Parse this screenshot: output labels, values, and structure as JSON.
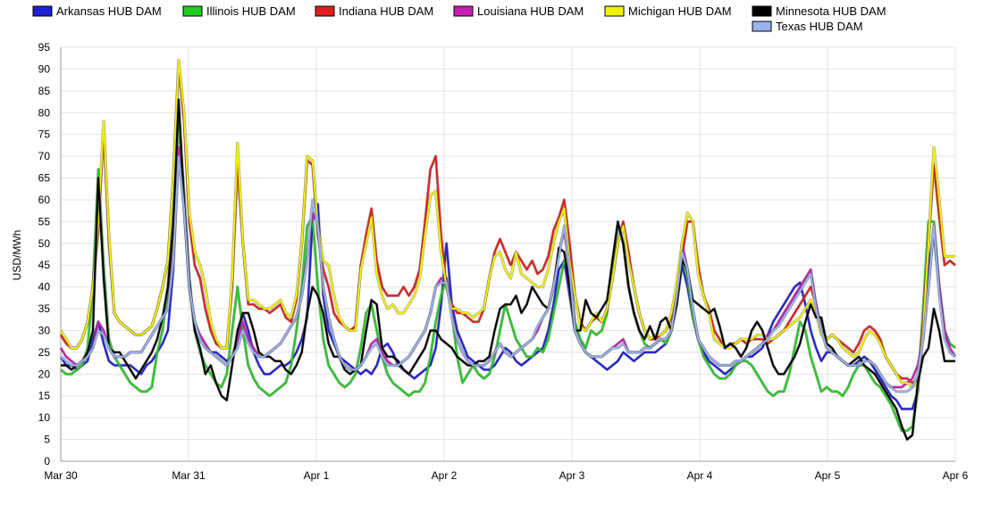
{
  "chart_data": {
    "type": "line",
    "title": "",
    "xlabel": "",
    "ylabel": "USD/MWh",
    "ylim": [
      0,
      95
    ],
    "yticks": [
      0,
      5,
      10,
      15,
      20,
      25,
      30,
      35,
      40,
      45,
      50,
      55,
      60,
      65,
      70,
      75,
      80,
      85,
      90,
      95
    ],
    "x_range": [
      0,
      168
    ],
    "x_unit": "hours from Mar 30 00:00",
    "x_tick_labels": [
      "Mar 30",
      "Mar 31",
      "Apr 1",
      "Apr 2",
      "Apr 3",
      "Apr 4",
      "Apr 5",
      "Apr 6"
    ],
    "grid": true,
    "legend_position": "top",
    "series": [
      {
        "name": "Arkansas HUB DAM",
        "color": "#1f1fd6",
        "values": [
          24,
          22,
          22,
          21,
          22,
          23,
          28,
          32,
          27,
          23,
          22,
          22,
          22,
          22,
          21,
          20,
          22,
          23,
          25,
          27,
          30,
          44,
          72,
          58,
          40,
          32,
          28,
          26,
          25,
          25,
          24,
          23,
          24,
          28,
          34,
          30,
          25,
          22,
          20,
          20,
          21,
          22,
          22,
          23,
          25,
          28,
          33,
          55,
          59,
          38,
          30,
          27,
          24,
          23,
          22,
          21,
          20,
          21,
          20,
          22,
          26,
          27,
          25,
          22,
          21,
          20,
          19,
          20,
          21,
          22,
          26,
          36,
          50,
          36,
          30,
          27,
          24,
          23,
          22,
          21,
          21,
          22,
          24,
          26,
          25,
          23,
          22,
          23,
          24,
          25,
          26,
          30,
          36,
          44,
          46,
          38,
          30,
          27,
          25,
          24,
          23,
          22,
          21,
          22,
          23,
          25,
          24,
          23,
          24,
          25,
          25,
          25,
          26,
          27,
          30,
          36,
          45,
          40,
          33,
          28,
          25,
          23,
          22,
          21,
          20,
          21,
          22,
          23,
          24,
          24,
          25,
          26,
          29,
          32,
          34,
          36,
          38,
          40,
          41,
          36,
          30,
          26,
          23,
          25,
          25,
          24,
          23,
          22,
          22,
          23,
          24,
          23,
          21,
          19,
          17,
          15,
          14,
          12,
          12,
          12,
          16,
          30,
          45,
          52,
          40,
          30,
          25,
          24
        ]
      },
      {
        "name": "Illinois HUB DAM",
        "color": "#22cc22",
        "values": [
          21,
          20,
          20,
          21,
          22,
          26,
          40,
          67,
          45,
          28,
          24,
          22,
          20,
          18,
          17,
          16,
          16,
          17,
          25,
          30,
          40,
          55,
          78,
          62,
          40,
          30,
          25,
          22,
          20,
          18,
          17,
          20,
          30,
          40,
          30,
          22,
          19,
          17,
          16,
          15,
          16,
          17,
          18,
          22,
          30,
          40,
          54,
          56,
          40,
          28,
          22,
          20,
          18,
          17,
          18,
          20,
          26,
          34,
          36,
          30,
          24,
          20,
          18,
          17,
          16,
          15,
          16,
          16,
          18,
          24,
          32,
          38,
          42,
          34,
          24,
          18,
          20,
          22,
          20,
          19,
          20,
          24,
          30,
          36,
          32,
          28,
          26,
          24,
          24,
          26,
          25,
          28,
          34,
          40,
          46,
          44,
          32,
          28,
          26,
          30,
          29,
          30,
          34,
          46,
          54,
          50,
          40,
          34,
          30,
          27,
          26,
          27,
          28,
          27,
          30,
          38,
          47,
          42,
          33,
          28,
          24,
          22,
          20,
          19,
          19,
          20,
          22,
          23,
          23,
          22,
          20,
          18,
          16,
          15,
          16,
          16,
          20,
          26,
          32,
          30,
          24,
          20,
          16,
          17,
          16,
          16,
          15,
          17,
          20,
          22,
          22,
          20,
          18,
          17,
          15,
          13,
          10,
          7,
          7,
          8,
          16,
          35,
          55,
          55,
          40,
          30,
          27,
          26
        ]
      },
      {
        "name": "Indiana HUB DAM",
        "color": "#e01e1e",
        "values": [
          29,
          27,
          26,
          26,
          28,
          32,
          40,
          53,
          76,
          50,
          34,
          32,
          31,
          30,
          29,
          29,
          30,
          31,
          35,
          40,
          46,
          65,
          91,
          78,
          55,
          45,
          42,
          35,
          30,
          27,
          26,
          26,
          40,
          68,
          50,
          36,
          36,
          35,
          35,
          34,
          35,
          36,
          33,
          32,
          37,
          50,
          69,
          68,
          52,
          44,
          40,
          34,
          32,
          31,
          30,
          31,
          45,
          52,
          58,
          46,
          40,
          38,
          38,
          38,
          40,
          38,
          40,
          44,
          55,
          67,
          70,
          52,
          40,
          36,
          34,
          34,
          33,
          32,
          32,
          35,
          42,
          48,
          51,
          48,
          45,
          48,
          46,
          44,
          46,
          43,
          44,
          47,
          53,
          56,
          60,
          50,
          38,
          32,
          30,
          32,
          33,
          32,
          35,
          42,
          50,
          55,
          48,
          40,
          34,
          30,
          28,
          28,
          29,
          30,
          33,
          40,
          47,
          55,
          55,
          45,
          38,
          35,
          30,
          28,
          26,
          27,
          27,
          28,
          27,
          28,
          28,
          28,
          27,
          28,
          29,
          30,
          32,
          34,
          36,
          38,
          40,
          36,
          30,
          28,
          29,
          28,
          27,
          26,
          25,
          27,
          30,
          31,
          30,
          28,
          24,
          22,
          20,
          19,
          19,
          18,
          19,
          32,
          50,
          68,
          56,
          45,
          46,
          45
        ]
      },
      {
        "name": "Louisiana HUB DAM",
        "color": "#c71fb0",
        "values": [
          26,
          24,
          23,
          22,
          23,
          24,
          26,
          32,
          30,
          26,
          24,
          24,
          24,
          25,
          25,
          25,
          27,
          29,
          31,
          33,
          35,
          48,
          72,
          60,
          40,
          32,
          29,
          27,
          25,
          24,
          23,
          22,
          24,
          28,
          32,
          28,
          26,
          24,
          24,
          25,
          26,
          27,
          29,
          31,
          33,
          38,
          47,
          57,
          55,
          40,
          33,
          28,
          24,
          22,
          21,
          21,
          22,
          24,
          27,
          28,
          25,
          23,
          22,
          22,
          23,
          24,
          26,
          28,
          30,
          34,
          40,
          42,
          42,
          34,
          28,
          25,
          23,
          22,
          22,
          22,
          23,
          25,
          27,
          25,
          24,
          25,
          26,
          27,
          28,
          30,
          33,
          35,
          40,
          48,
          53,
          44,
          30,
          27,
          25,
          24,
          24,
          24,
          25,
          26,
          27,
          28,
          25,
          25,
          25,
          26,
          26,
          27,
          28,
          28,
          30,
          38,
          50,
          44,
          35,
          28,
          26,
          24,
          23,
          22,
          22,
          22,
          23,
          23,
          24,
          25,
          26,
          27,
          29,
          30,
          32,
          34,
          36,
          38,
          40,
          42,
          44,
          36,
          30,
          26,
          25,
          24,
          23,
          22,
          22,
          22,
          23,
          23,
          22,
          20,
          18,
          17,
          17,
          17,
          18,
          19,
          22,
          28,
          40,
          54,
          40,
          30,
          26,
          24
        ]
      },
      {
        "name": "Michigan HUB DAM",
        "color": "#f2f200",
        "values": [
          30,
          28,
          26,
          26,
          28,
          32,
          40,
          55,
          78,
          52,
          34,
          32,
          31,
          30,
          29,
          29,
          30,
          31,
          35,
          40,
          46,
          65,
          92,
          80,
          57,
          48,
          45,
          40,
          32,
          28,
          26,
          26,
          42,
          73,
          50,
          37,
          37,
          36,
          35,
          35,
          36,
          37,
          34,
          33,
          38,
          50,
          70,
          69,
          54,
          46,
          45,
          38,
          33,
          31,
          30,
          30,
          44,
          50,
          56,
          43,
          38,
          35,
          36,
          34,
          34,
          36,
          38,
          42,
          52,
          61,
          62,
          48,
          40,
          35,
          35,
          34,
          34,
          33,
          34,
          35,
          42,
          47,
          48,
          44,
          42,
          48,
          43,
          42,
          41,
          40,
          40,
          44,
          50,
          55,
          58,
          46,
          38,
          31,
          30,
          32,
          34,
          32,
          35,
          42,
          50,
          54,
          46,
          40,
          34,
          30,
          28,
          29,
          29,
          30,
          34,
          41,
          50,
          57,
          55,
          43,
          38,
          34,
          28,
          27,
          26,
          26,
          27,
          28,
          28,
          28,
          29,
          29,
          28,
          28,
          29,
          30,
          31,
          32,
          33,
          35,
          37,
          34,
          29,
          28,
          29,
          28,
          26,
          25,
          24,
          25,
          28,
          30,
          29,
          27,
          24,
          22,
          20,
          18,
          18,
          17,
          18,
          30,
          50,
          72,
          60,
          47,
          47,
          47
        ]
      },
      {
        "name": "Minnesota HUB DAM",
        "color": "#000000",
        "values": [
          22,
          22,
          21,
          22,
          23,
          25,
          30,
          65,
          42,
          26,
          25,
          25,
          23,
          21,
          19,
          21,
          23,
          25,
          28,
          33,
          40,
          54,
          83,
          60,
          42,
          30,
          26,
          20,
          22,
          18,
          15,
          14,
          22,
          30,
          34,
          34,
          30,
          25,
          24,
          24,
          23,
          23,
          21,
          20,
          22,
          25,
          34,
          40,
          38,
          34,
          27,
          24,
          24,
          21,
          20,
          21,
          22,
          30,
          37,
          36,
          26,
          24,
          24,
          23,
          21,
          20,
          22,
          24,
          26,
          30,
          30,
          28,
          27,
          26,
          24,
          23,
          22,
          22,
          23,
          23,
          24,
          30,
          35,
          36,
          36,
          38,
          34,
          36,
          40,
          38,
          36,
          35,
          40,
          49,
          48,
          40,
          30,
          30,
          37,
          34,
          33,
          35,
          37,
          46,
          55,
          50,
          40,
          34,
          30,
          28,
          31,
          28,
          32,
          33,
          30,
          36,
          46,
          44,
          37,
          36,
          35,
          34,
          35,
          31,
          26,
          27,
          26,
          24,
          26,
          30,
          32,
          30,
          26,
          22,
          20,
          20,
          22,
          24,
          27,
          32,
          36,
          33,
          33,
          27,
          26,
          24,
          23,
          22,
          23,
          24,
          22,
          21,
          20,
          18,
          16,
          14,
          12,
          8,
          5,
          6,
          18,
          24,
          26,
          35,
          30,
          23,
          23,
          23
        ]
      },
      {
        "name": "Texas HUB DAM",
        "color": "#99b3ee",
        "values": [
          24,
          23,
          22,
          22,
          23,
          24,
          26,
          30,
          29,
          26,
          24,
          24,
          24,
          25,
          25,
          25,
          27,
          29,
          31,
          33,
          35,
          46,
          70,
          58,
          40,
          32,
          28,
          26,
          25,
          24,
          23,
          22,
          24,
          26,
          30,
          27,
          25,
          24,
          24,
          25,
          26,
          27,
          29,
          31,
          33,
          38,
          46,
          60,
          54,
          40,
          33,
          28,
          24,
          22,
          21,
          21,
          22,
          24,
          26,
          27,
          24,
          22,
          22,
          22,
          23,
          24,
          26,
          28,
          30,
          34,
          40,
          41,
          41,
          33,
          28,
          25,
          23,
          22,
          22,
          22,
          23,
          25,
          27,
          25,
          24,
          25,
          26,
          27,
          28,
          31,
          33,
          35,
          40,
          47,
          54,
          44,
          30,
          27,
          25,
          24,
          24,
          24,
          25,
          26,
          26,
          27,
          25,
          25,
          25,
          26,
          26,
          27,
          28,
          28,
          30,
          38,
          48,
          44,
          35,
          28,
          26,
          24,
          23,
          22,
          22,
          22,
          23,
          23,
          24,
          25,
          26,
          27,
          28,
          30,
          31,
          33,
          35,
          37,
          39,
          41,
          43,
          35,
          30,
          26,
          25,
          24,
          23,
          22,
          22,
          22,
          23,
          23,
          22,
          20,
          18,
          17,
          16,
          16,
          16,
          17,
          20,
          28,
          40,
          54,
          38,
          28,
          25,
          24
        ]
      }
    ]
  }
}
